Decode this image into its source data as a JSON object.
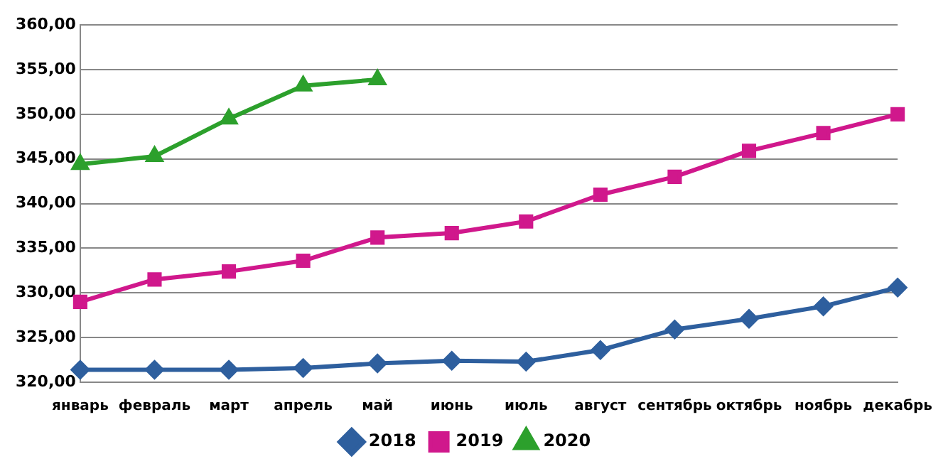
{
  "chart_data": {
    "type": "line",
    "categories": [
      "январь",
      "февраль",
      "март",
      "апрель",
      "май",
      "июнь",
      "июль",
      "август",
      "сентябрь",
      "октябрь",
      "ноябрь",
      "декабрь"
    ],
    "series": [
      {
        "name": "2018",
        "color": "#2e5f9e",
        "marker": "diamond",
        "values": [
          321.4,
          321.4,
          321.4,
          321.6,
          322.1,
          322.4,
          322.3,
          323.6,
          325.9,
          327.1,
          328.5,
          330.6
        ]
      },
      {
        "name": "2019",
        "color": "#d0188c",
        "marker": "square",
        "values": [
          329.0,
          331.5,
          332.4,
          333.6,
          336.2,
          336.7,
          338.0,
          341.0,
          343.0,
          345.9,
          347.9,
          350.0
        ]
      },
      {
        "name": "2020",
        "color": "#2ca02c",
        "marker": "triangle",
        "values": [
          344.4,
          345.3,
          349.5,
          353.2,
          353.9,
          null,
          null,
          null,
          null,
          null,
          null,
          null
        ]
      }
    ],
    "ylim": [
      320,
      360
    ],
    "yticks": [
      {
        "value": 320,
        "label": "320,00"
      },
      {
        "value": 325,
        "label": "325,00"
      },
      {
        "value": 330,
        "label": "330,00"
      },
      {
        "value": 335,
        "label": "335,00"
      },
      {
        "value": 340,
        "label": "340,00"
      },
      {
        "value": 345,
        "label": "345,00"
      },
      {
        "value": 350,
        "label": "350,00"
      },
      {
        "value": 355,
        "label": "355,00"
      },
      {
        "value": 360,
        "label": "360,00"
      }
    ],
    "grid": "y",
    "legend": "bottom"
  }
}
